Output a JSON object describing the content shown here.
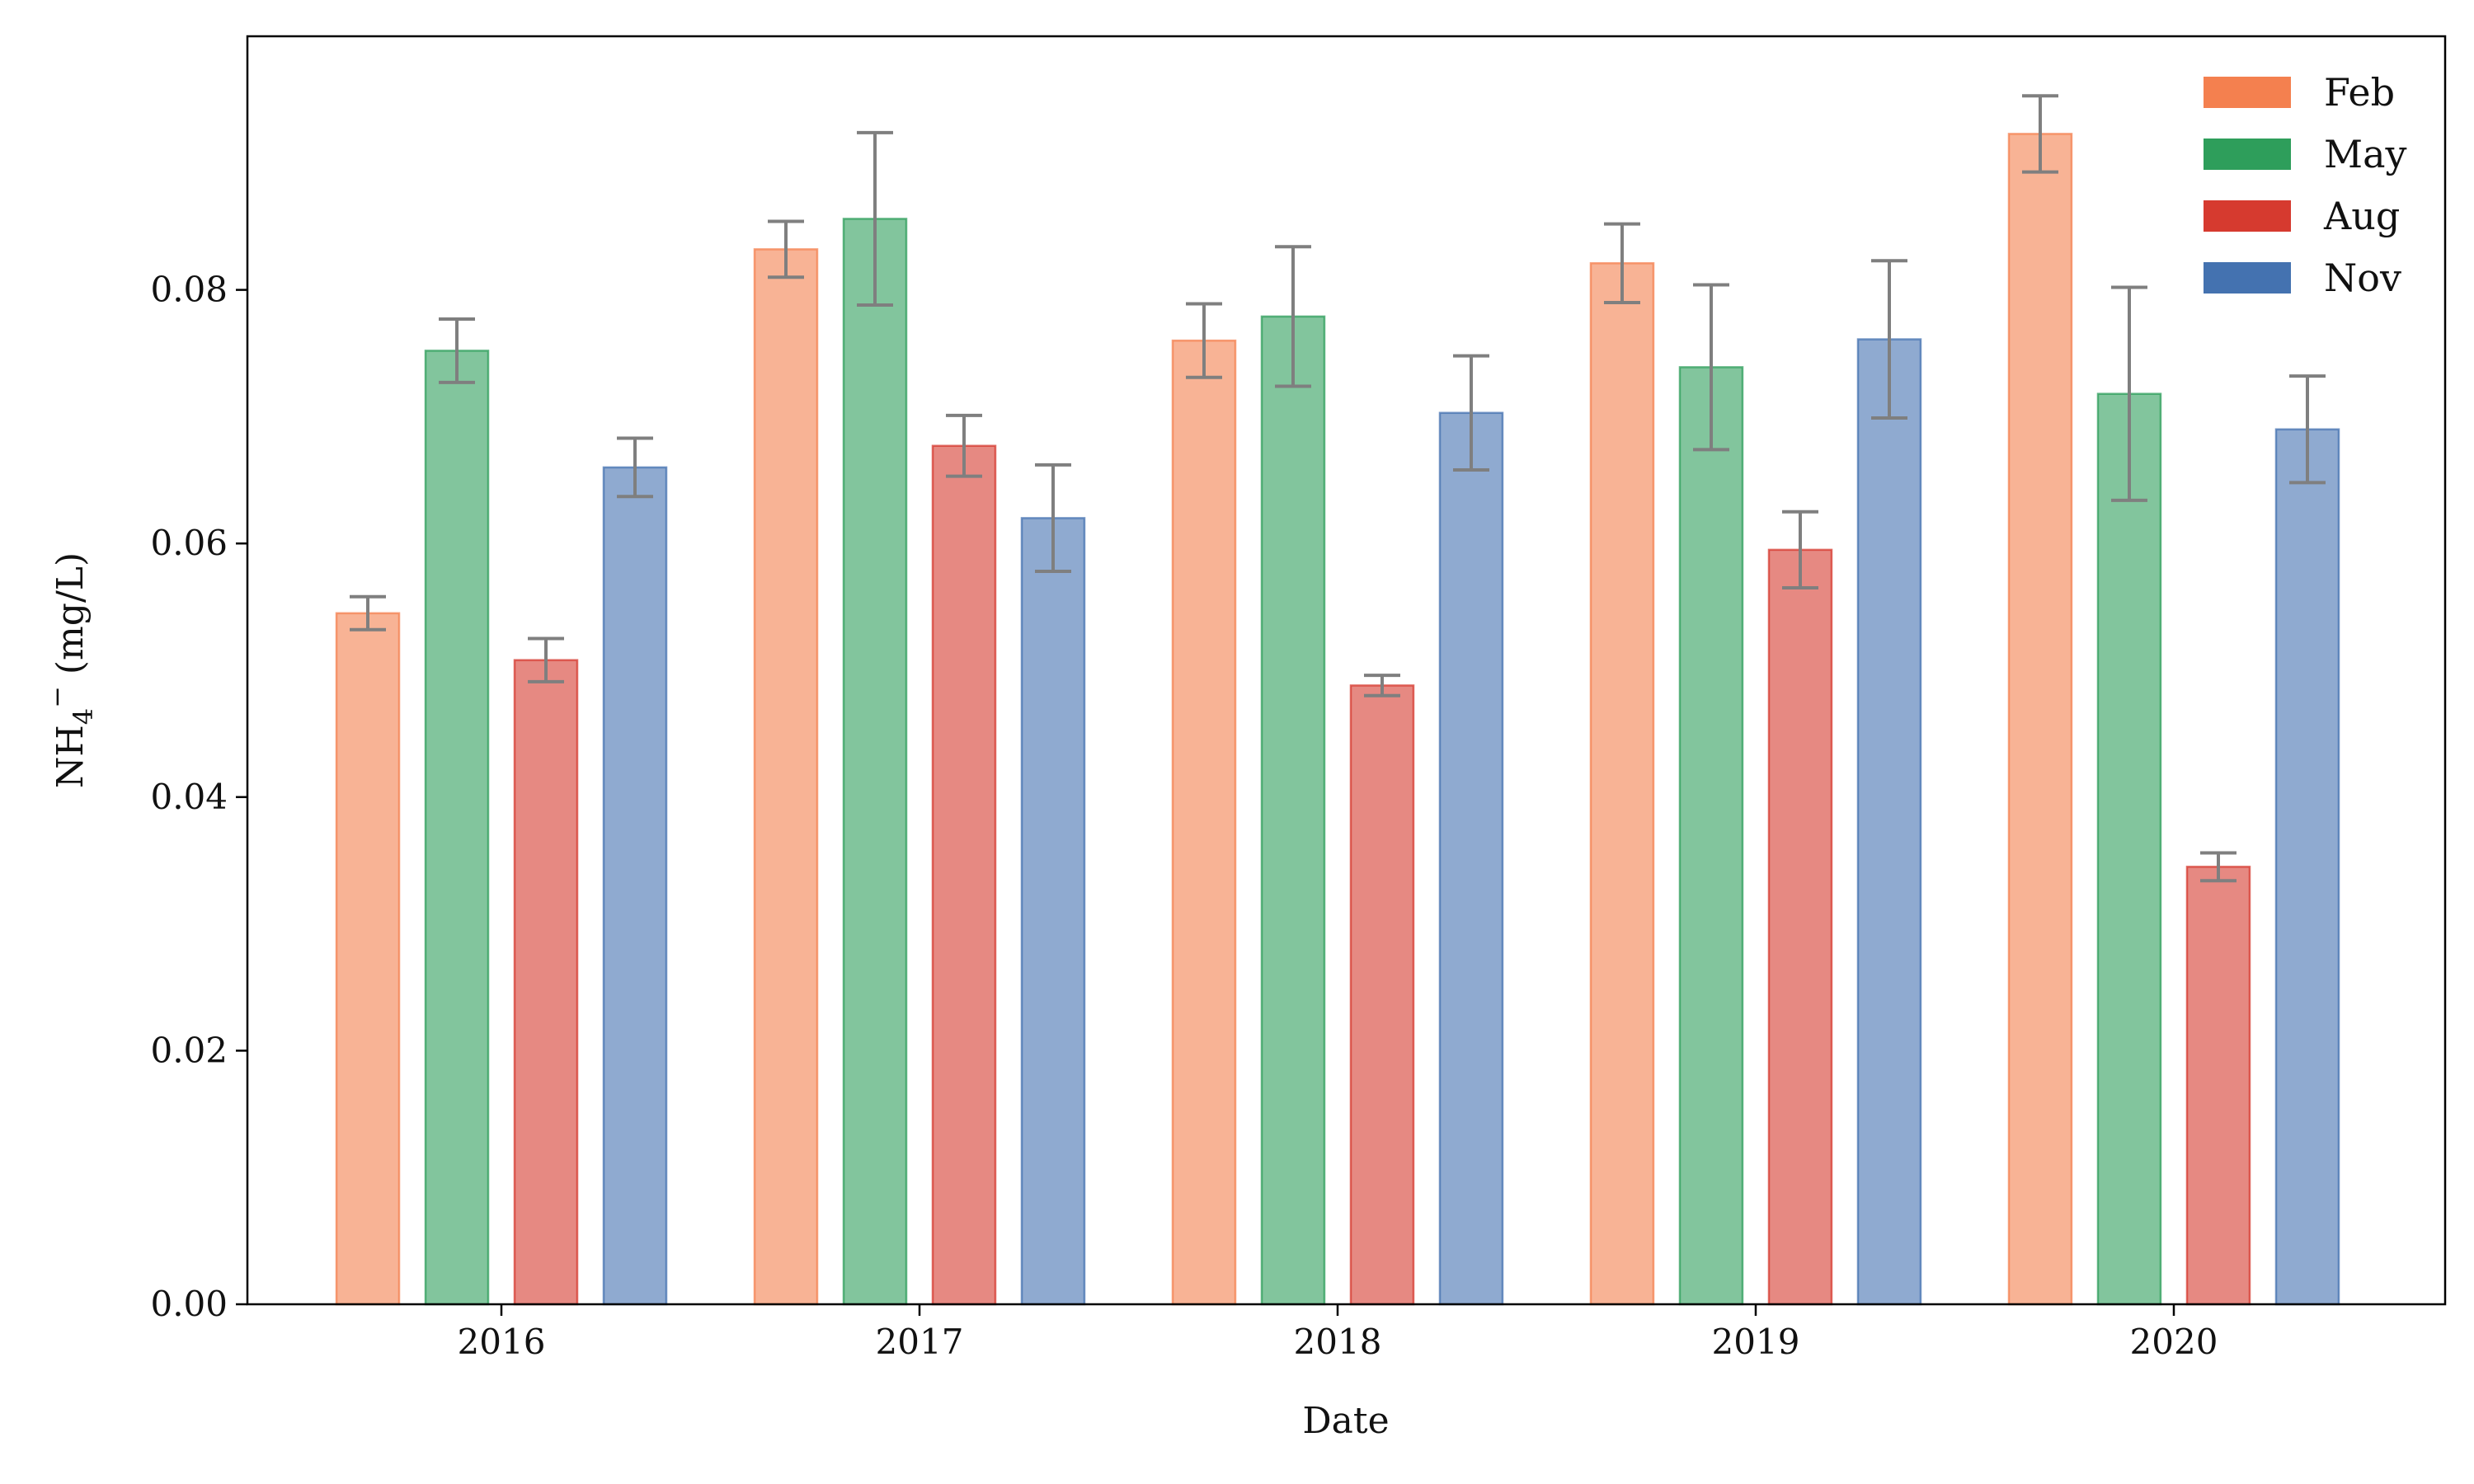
{
  "chart_data": {
    "type": "bar",
    "title": "",
    "xlabel": "Date",
    "ylabel": {
      "base": "NH",
      "sub": "4",
      "sup": "−",
      "rest": " (mg/L)"
    },
    "categories": [
      "2016",
      "2017",
      "2018",
      "2019",
      "2020"
    ],
    "ylim": [
      0,
      0.1
    ],
    "yticks": [
      "0.00",
      "0.02",
      "0.04",
      "0.06",
      "0.08"
    ],
    "ytick_values": [
      0,
      0.02,
      0.04,
      0.06,
      0.08
    ],
    "grid": false,
    "legend_position": "top-right",
    "series": [
      {
        "name": "Feb",
        "color": "#F4804F",
        "values": [
          0.0545,
          0.0832,
          0.076,
          0.0821,
          0.0923
        ],
        "errors": [
          0.0013,
          0.0022,
          0.0029,
          0.0031,
          0.003
        ]
      },
      {
        "name": "May",
        "color": "#2E9E5B",
        "values": [
          0.0752,
          0.0856,
          0.0779,
          0.0739,
          0.0718
        ],
        "errors": [
          0.0025,
          0.0068,
          0.0055,
          0.0065,
          0.0084
        ]
      },
      {
        "name": "Aug",
        "color": "#D63A2F",
        "values": [
          0.0508,
          0.0677,
          0.0488,
          0.0595,
          0.0345
        ],
        "errors": [
          0.0017,
          0.0024,
          0.0008,
          0.003,
          0.0011
        ]
      },
      {
        "name": "Nov",
        "color": "#4472B0",
        "values": [
          0.066,
          0.062,
          0.0703,
          0.0761,
          0.069
        ],
        "errors": [
          0.0023,
          0.0042,
          0.0045,
          0.0062,
          0.0042
        ]
      }
    ]
  }
}
